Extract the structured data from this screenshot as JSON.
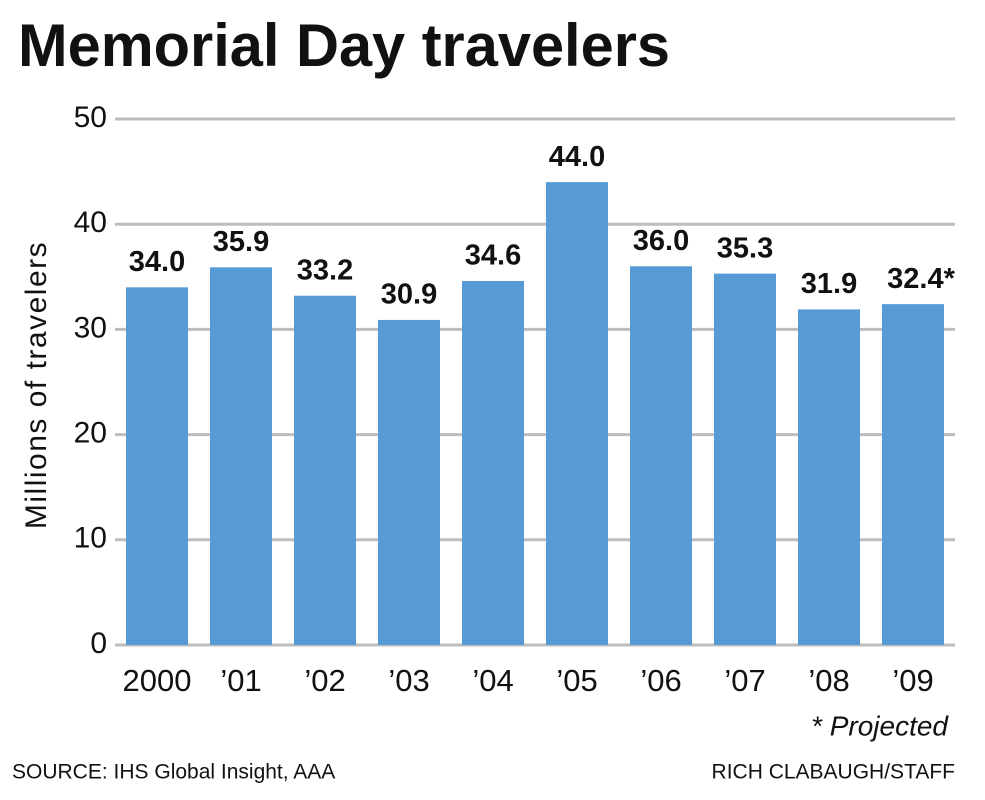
{
  "chart_data": {
    "type": "bar",
    "title": "Memorial Day travelers",
    "y_label": "Millions of travelers",
    "categories": [
      "2000",
      "’01",
      "’02",
      "’03",
      "’04",
      "’05",
      "’06",
      "’07",
      "’08",
      "’09"
    ],
    "values": [
      34.0,
      35.9,
      33.2,
      30.9,
      34.6,
      44.0,
      36.0,
      35.3,
      31.9,
      32.4
    ],
    "value_labels": [
      "34.0",
      "35.9",
      "33.2",
      "30.9",
      "34.6",
      "44.0",
      "36.0",
      "35.3",
      "31.9",
      "32.4*"
    ],
    "color": "#579bd6",
    "ylim": [
      0,
      50
    ],
    "yticks": [
      0,
      10,
      20,
      30,
      40,
      50
    ],
    "grid": true,
    "annotation": "* Projected",
    "source": "SOURCE: IHS Global Insight, AAA",
    "credit": "RICH CLABAUGH/STAFF"
  }
}
